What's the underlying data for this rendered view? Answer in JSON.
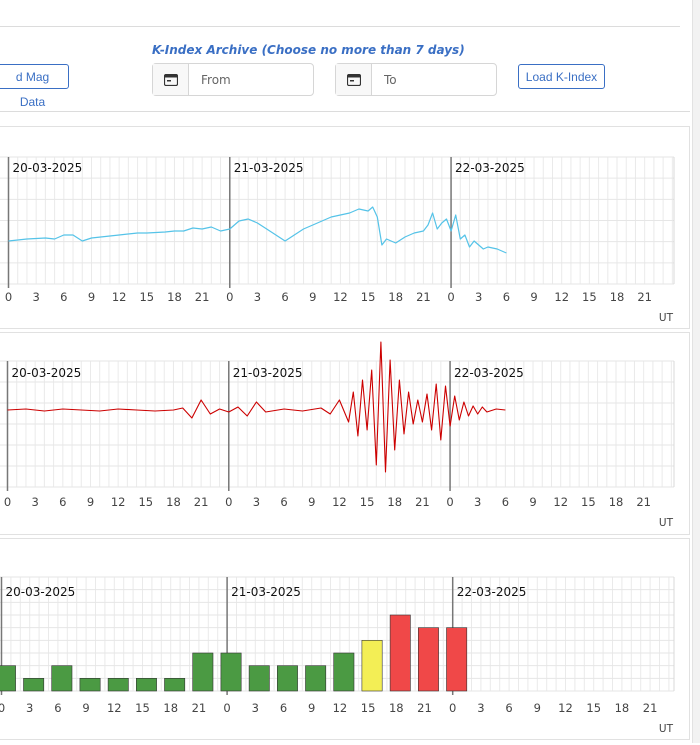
{
  "header": {
    "load_mag_label": "d Mag Data",
    "archive_title": "K-Index Archive (Choose no more than 7 days)",
    "from_placeholder": "From",
    "to_placeholder": "To",
    "load_k_label": "Load K-Index"
  },
  "chart_data": [
    {
      "type": "line",
      "title": "",
      "xlabel": "UT",
      "ylabel": "",
      "day_labels": [
        "20-03-2025",
        "21-03-2025",
        "22-03-2025"
      ],
      "tick_labels": [
        "0",
        "3",
        "6",
        "9",
        "12",
        "15",
        "18",
        "21",
        "0",
        "3",
        "6",
        "9",
        "12",
        "15",
        "18",
        "21",
        "0",
        "3",
        "6",
        "9",
        "12",
        "15",
        "18",
        "21"
      ],
      "series": [
        {
          "color": "#55c3e8",
          "x": [
            0,
            2,
            4,
            5,
            6,
            7,
            8,
            9,
            10,
            12,
            14,
            15,
            17,
            18,
            19,
            20,
            21,
            22,
            23,
            24,
            25,
            26,
            27,
            28,
            29,
            30,
            31,
            32,
            33,
            34,
            35,
            36,
            37,
            38,
            39,
            39.5,
            40,
            40.5,
            41,
            42,
            43,
            44,
            45,
            45.5,
            46,
            46.5,
            47,
            47.5,
            48,
            48.5,
            49,
            49.5,
            50,
            50.5,
            51,
            51.5,
            52,
            53,
            54
          ],
          "values": [
            -30,
            -28,
            -27,
            -28,
            -24,
            -24,
            -30,
            -27,
            -26,
            -24,
            -22,
            -22,
            -21,
            -20,
            -20,
            -17,
            -18,
            -16,
            -20,
            -18,
            -10,
            -8,
            -12,
            -18,
            -24,
            -30,
            -24,
            -18,
            -14,
            -10,
            -6,
            -4,
            -2,
            2,
            0,
            4,
            -6,
            -34,
            -28,
            -32,
            -26,
            -22,
            -20,
            -14,
            -2,
            -18,
            -12,
            -8,
            -20,
            -4,
            -28,
            -24,
            -36,
            -30,
            -34,
            -38,
            -36,
            -38,
            -42
          ]
        }
      ]
    },
    {
      "type": "line",
      "title": "",
      "xlabel": "UT",
      "ylabel": "",
      "day_labels": [
        "20-03-2025",
        "21-03-2025",
        "22-03-2025"
      ],
      "tick_labels": [
        "0",
        "3",
        "6",
        "9",
        "12",
        "15",
        "18",
        "21",
        "0",
        "3",
        "6",
        "9",
        "12",
        "15",
        "18",
        "21",
        "0",
        "3",
        "6",
        "9",
        "12",
        "15",
        "18",
        "21"
      ],
      "series": [
        {
          "color": "#cc0000",
          "x": [
            0,
            2,
            4,
            6,
            8,
            10,
            12,
            14,
            16,
            18,
            19,
            20,
            21,
            22,
            23,
            24,
            25,
            26,
            27,
            28,
            30,
            32,
            34,
            35,
            36,
            37,
            37.5,
            38,
            38.5,
            39,
            39.5,
            40,
            40.5,
            41,
            41.5,
            42,
            42.5,
            43,
            43.5,
            44,
            44.5,
            45,
            45.5,
            46,
            46.5,
            47,
            47.5,
            48,
            48.5,
            49,
            49.5,
            50,
            50.5,
            51,
            51.5,
            52,
            53,
            54
          ],
          "values": [
            0,
            1,
            -1,
            1,
            0,
            -1,
            1,
            0,
            -1,
            0,
            2,
            -8,
            10,
            -4,
            1,
            -2,
            3,
            -6,
            8,
            -2,
            1,
            -1,
            2,
            -4,
            10,
            -12,
            18,
            -26,
            30,
            -20,
            40,
            -55,
            68,
            -62,
            50,
            -40,
            30,
            -24,
            18,
            -14,
            10,
            -12,
            16,
            -20,
            26,
            -30,
            24,
            -16,
            14,
            -10,
            8,
            -6,
            4,
            -4,
            3,
            -2,
            1,
            0
          ]
        }
      ]
    },
    {
      "type": "bar",
      "title": "",
      "xlabel": "UT",
      "ylabel": "",
      "day_labels": [
        "20-03-2025",
        "21-03-2025",
        "22-03-2025"
      ],
      "tick_labels": [
        "0",
        "3",
        "6",
        "9",
        "12",
        "15",
        "18",
        "21",
        "0",
        "3",
        "6",
        "9",
        "12",
        "15",
        "18",
        "21",
        "0",
        "3",
        "6",
        "9",
        "12",
        "15",
        "18",
        "21"
      ],
      "bar_times": [
        0,
        3,
        6,
        9,
        12,
        15,
        18,
        21,
        24,
        27,
        30,
        33,
        36,
        39,
        42,
        45,
        48
      ],
      "values": [
        2,
        1,
        2,
        1,
        1,
        1,
        1,
        3,
        3,
        2,
        2,
        2,
        3,
        4,
        6,
        5,
        5
      ],
      "colors": [
        "#4b9a43",
        "#4b9a43",
        "#4b9a43",
        "#4b9a43",
        "#4b9a43",
        "#4b9a43",
        "#4b9a43",
        "#4b9a43",
        "#4b9a43",
        "#4b9a43",
        "#4b9a43",
        "#4b9a43",
        "#4b9a43",
        "#f3ee55",
        "#f04848",
        "#f04848",
        "#f04848"
      ],
      "ylim": [
        0,
        9
      ]
    }
  ]
}
